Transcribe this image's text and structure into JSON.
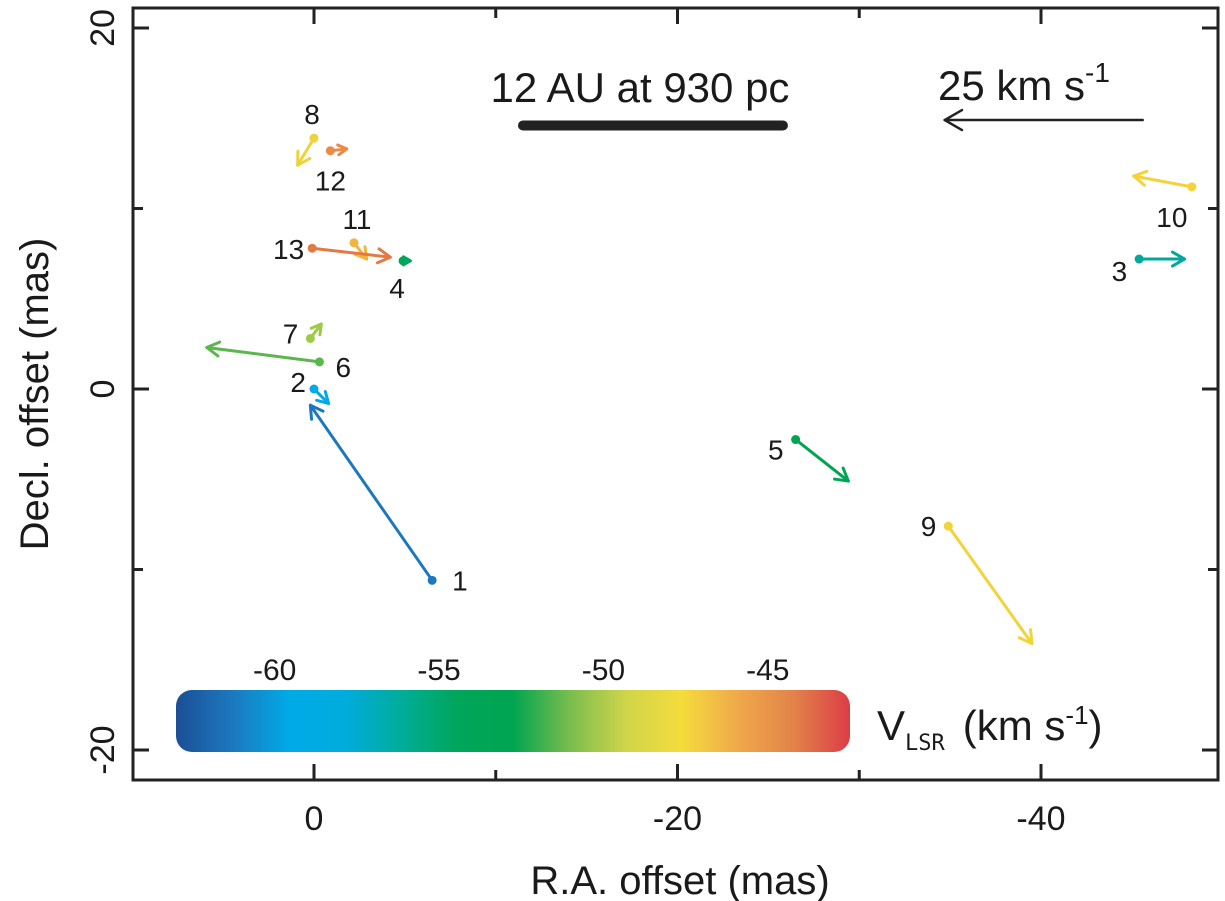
{
  "chart_data": {
    "type": "scatter",
    "xlabel": "R.A. offset (mas)",
    "ylabel": "Decl. offset (mas)",
    "xlim": [
      10,
      -50
    ],
    "ylim": [
      -21.5,
      21
    ],
    "x_ticks": [
      0,
      -20,
      -40
    ],
    "x_tick_labels": [
      "0",
      "-20",
      "-40"
    ],
    "y_ticks": [
      20,
      0,
      -20
    ],
    "y_tick_labels": [
      "20",
      "0",
      "-20"
    ],
    "scale_bar": {
      "label": "12 AU at 930 pc",
      "x_from": -11.5,
      "x_to": -25.8,
      "y": 14.6
    },
    "velocity_key": {
      "label": "25 km s-1",
      "label_main": "25 km s",
      "label_sup": "-1",
      "x_from": -45.6,
      "x_to": -34.7,
      "y": 14.9
    },
    "colorbar": {
      "label_main": "V",
      "label_sub": "LSR",
      "label_unit": "(km s",
      "label_sup": "-1",
      "label_close": ")",
      "tick_values": [
        -60,
        -55,
        -50,
        -45
      ],
      "tick_labels": [
        "-60",
        "-55",
        "-50",
        "-45"
      ],
      "range": [
        -63,
        -42.5
      ],
      "colors": [
        "#1b4f96",
        "#1c78be",
        "#00aae6",
        "#00acdd",
        "#00ad9a",
        "#00a65a",
        "#00a551",
        "#78bd4e",
        "#cfd54a",
        "#f4dc3c",
        "#f0a94a",
        "#e2834a",
        "#dc3c46"
      ]
    },
    "features": [
      {
        "id": "1",
        "x": -6.5,
        "y": -10.6,
        "dx": 6.7,
        "dy": 9.7,
        "color": "#1c78be"
      },
      {
        "id": "2",
        "x": 0.0,
        "y": 0.0,
        "dx": -0.8,
        "dy": -0.8,
        "color": "#00aae6"
      },
      {
        "id": "3",
        "x": -45.4,
        "y": 7.2,
        "dx": -2.5,
        "dy": 0.0,
        "color": "#00a89d"
      },
      {
        "id": "4",
        "x": -4.9,
        "y": 7.1,
        "dx": -0.4,
        "dy": 0.0,
        "color": "#00a65a"
      },
      {
        "id": "5",
        "x": -26.5,
        "y": -2.8,
        "dx": -2.9,
        "dy": -2.3,
        "color": "#00a551"
      },
      {
        "id": "6",
        "x": -0.3,
        "y": 1.5,
        "dx": 6.2,
        "dy": 0.8,
        "color": "#5ab74c"
      },
      {
        "id": "7",
        "x": 0.2,
        "y": 2.8,
        "dx": -0.6,
        "dy": 0.8,
        "color": "#9fca46"
      },
      {
        "id": "8",
        "x": 0.0,
        "y": 13.9,
        "dx": 0.9,
        "dy": -1.5,
        "color": "#eed43c"
      },
      {
        "id": "9",
        "x": -34.9,
        "y": -7.6,
        "dx": -4.6,
        "dy": -6.5,
        "color": "#f1d33a"
      },
      {
        "id": "10",
        "x": -48.3,
        "y": 11.2,
        "dx": 3.2,
        "dy": 0.6,
        "color": "#f3d23a"
      },
      {
        "id": "11",
        "x": -2.2,
        "y": 8.1,
        "dx": -0.7,
        "dy": -0.9,
        "color": "#f0b53f"
      },
      {
        "id": "12",
        "x": -0.9,
        "y": 13.2,
        "dx": -0.9,
        "dy": 0.1,
        "color": "#ea8a45"
      },
      {
        "id": "13",
        "x": 0.1,
        "y": 7.8,
        "dx": -4.3,
        "dy": -0.5,
        "color": "#e37a44"
      }
    ]
  }
}
